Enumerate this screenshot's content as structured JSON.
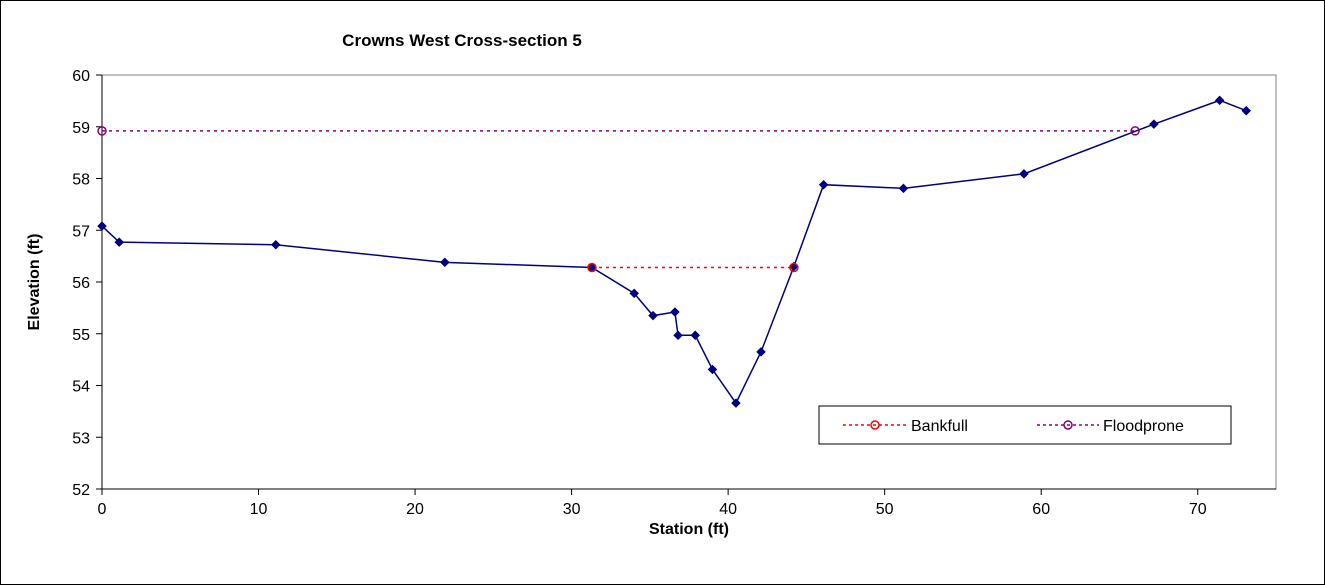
{
  "chart_data": {
    "type": "line",
    "title": "Crowns West Cross-section 5",
    "xlabel": "Station (ft)",
    "ylabel": "Elevation (ft)",
    "xlim": [
      0,
      75
    ],
    "ylim": [
      52,
      60
    ],
    "xticks": [
      0,
      10,
      20,
      30,
      40,
      50,
      60,
      70
    ],
    "yticks": [
      52,
      53,
      54,
      55,
      56,
      57,
      58,
      59,
      60
    ],
    "grid": false,
    "legend_position": "bottom-right",
    "colors": {
      "profile": "#000080",
      "bankfull": "#ff0000",
      "floodprone": "#800080"
    },
    "series": [
      {
        "x": [
          0,
          1.1,
          11.1,
          21.9,
          31.3,
          34,
          35.2,
          36.6,
          36.8,
          37.9,
          39,
          40.5,
          42.1,
          44.2,
          46.1,
          51.2,
          58.9,
          67.2,
          71.4,
          73.1
        ],
        "y": [
          57.08,
          56.77,
          56.72,
          56.38,
          56.28,
          55.78,
          55.35,
          55.42,
          54.97,
          54.97,
          54.31,
          53.66,
          54.65,
          56.3,
          57.88,
          57.81,
          58.09,
          59.05,
          59.51,
          59.31
        ]
      },
      {
        "name": "Bankfull",
        "x": [
          31.3,
          44.2
        ],
        "y": [
          56.28,
          56.28
        ]
      },
      {
        "name": "Floodprone",
        "x": [
          0,
          66
        ],
        "y": [
          58.92,
          58.92
        ]
      }
    ]
  }
}
